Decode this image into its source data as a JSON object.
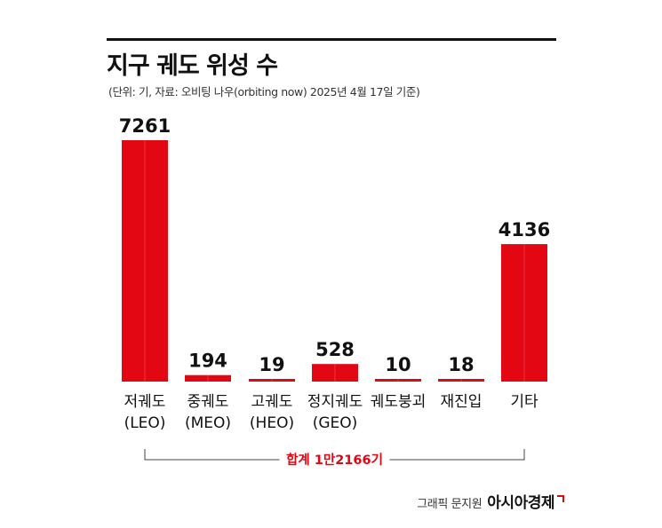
{
  "header": {
    "title": "지구 궤도 위성 수",
    "subtitle": "(단위: 기, 자료: 오비팅 나우(orbiting now) 2025년 4월 17일 기준)"
  },
  "chart_data": {
    "type": "bar",
    "categories": [
      [
        "저궤도",
        "(LEO)"
      ],
      [
        "중궤도",
        "(MEO)"
      ],
      [
        "고궤도",
        "(HEO)"
      ],
      [
        "정지궤도",
        "(GEO)"
      ],
      [
        "궤도붕괴"
      ],
      [
        "재진입"
      ],
      [
        "기타"
      ]
    ],
    "values": [
      7261,
      194,
      19,
      528,
      10,
      18,
      4136
    ],
    "value_labels": [
      "7261",
      "194",
      "19",
      "528",
      "10",
      "18",
      "4136"
    ],
    "ylim": [
      0,
      7261
    ],
    "bar_color": "#e30613",
    "total_label": "합계 1만2166기",
    "grid": false,
    "legend": "none"
  },
  "credit": {
    "left": "그래픽 문지원",
    "brand": "아시아경제"
  }
}
